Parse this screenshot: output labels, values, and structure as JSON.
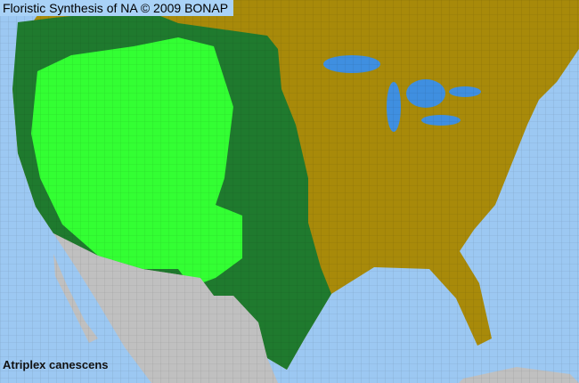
{
  "header": {
    "title": "Floristic Synthesis of NA © 2009 BONAP"
  },
  "species": {
    "name": "Atriplex canescens"
  },
  "colors": {
    "ocean": "#9cc8f2",
    "not_present": "#a88a0a",
    "present_state": "#1f7a2e",
    "present_county": "#33ff33",
    "outside_region": "#c0c0c0",
    "lakes": "#3f8fe0"
  }
}
